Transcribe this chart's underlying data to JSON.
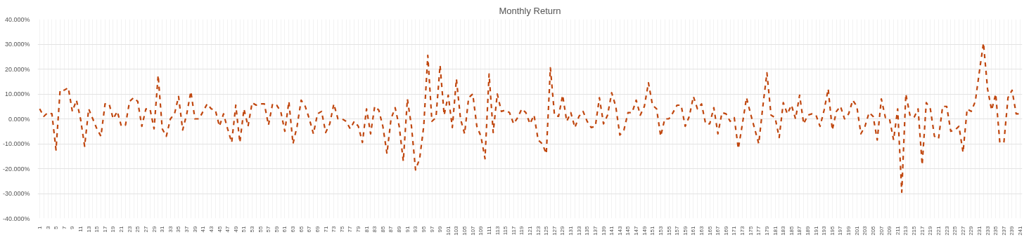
{
  "chart_data": {
    "type": "line",
    "title": "Monthly Return",
    "categories": [
      "1",
      null,
      "3",
      null,
      "5",
      null,
      "7",
      null,
      "9",
      null,
      "11",
      null,
      "13",
      null,
      "15",
      null,
      "17",
      null,
      "19",
      null,
      "21",
      null,
      "23",
      null,
      "25",
      null,
      "27",
      null,
      "29",
      null,
      "31",
      null,
      "33",
      null,
      "35",
      null,
      "37",
      null,
      "39",
      null,
      "41",
      null,
      "43",
      null,
      "45",
      null,
      "47",
      null,
      "49",
      null,
      "51",
      null,
      "53",
      null,
      "55",
      null,
      "57",
      null,
      "59",
      null,
      "61",
      null,
      "63",
      null,
      "65",
      null,
      "67",
      null,
      "69",
      null,
      "71",
      null,
      "73",
      null,
      "75",
      null,
      "77",
      null,
      "79",
      null,
      "81",
      null,
      "83",
      null,
      "85",
      null,
      "87",
      null,
      "89",
      null,
      "91",
      null,
      "93",
      null,
      "95",
      null,
      "97",
      null,
      "99",
      null,
      "101",
      null,
      "103",
      null,
      "105",
      null,
      "107",
      null,
      "109",
      null,
      "111",
      null,
      "113",
      null,
      "115",
      null,
      "117",
      null,
      "119",
      null,
      "121",
      null,
      "123",
      null,
      "125",
      null,
      "127",
      null,
      "129",
      null,
      "131",
      null,
      "133",
      null,
      "135",
      null,
      "137",
      null,
      "139",
      null,
      "141",
      null,
      "143",
      null,
      "145",
      null,
      "147",
      null,
      "149",
      null,
      "151",
      null,
      "153",
      null,
      "155",
      null,
      "157",
      null,
      "159",
      null,
      "161",
      null,
      "163",
      null,
      "165",
      null,
      "167",
      null,
      "169",
      null,
      "171",
      null,
      "173",
      null,
      "175",
      null,
      "177",
      null,
      "179",
      null,
      "181",
      null,
      "183",
      null,
      "185",
      null,
      "187",
      null,
      "189",
      null,
      "191",
      null,
      "193",
      null,
      "195",
      null,
      "197",
      null,
      "199",
      null,
      "201",
      null,
      "203",
      null,
      "205",
      null,
      "207",
      null,
      "209",
      null,
      "211",
      null,
      "213",
      null,
      "215",
      null,
      "217",
      null,
      "219",
      null,
      "221",
      null,
      "223",
      null,
      "225",
      null,
      "227",
      null,
      "229",
      null,
      "231",
      null,
      "233",
      null,
      "235",
      null,
      "237",
      null,
      "239",
      null,
      "241"
    ],
    "series": [
      {
        "color": "#c0470f",
        "values": [
          4,
          1,
          2.5,
          2,
          -12.5,
          11.5,
          11.5,
          12.5,
          3,
          7.5,
          0,
          -11,
          4,
          0,
          -4,
          -7,
          6,
          6,
          0,
          3,
          -3,
          -2.5,
          7,
          8.5,
          7,
          -3,
          4,
          4,
          -4,
          17.5,
          -4,
          -7,
          0,
          2,
          9,
          -4.5,
          2,
          11,
          0,
          0,
          3,
          6,
          4,
          3.5,
          -3,
          2,
          -4,
          -9.5,
          5.5,
          -9.5,
          4,
          -3,
          6.5,
          5.5,
          6,
          6,
          -2.5,
          6,
          5.5,
          3,
          -5,
          7,
          -10,
          -3,
          7.5,
          5,
          0,
          -6,
          2,
          3,
          -5.5,
          -2,
          6,
          0,
          0,
          -1,
          -4,
          -1,
          -3,
          -9.5,
          4,
          -6,
          5,
          3.5,
          -3,
          -14,
          0,
          4.5,
          -3,
          -17,
          8,
          -3,
          -20.5,
          -16,
          -3,
          25.5,
          -1,
          0.5,
          21.5,
          1.5,
          9.5,
          -3.5,
          16,
          0,
          -6,
          8.5,
          10,
          -3,
          -7,
          -16,
          18,
          -5.5,
          10,
          3,
          3.5,
          2.5,
          -2,
          0.5,
          4,
          2.5,
          -2,
          1.5,
          -8.5,
          -10,
          -14,
          20.5,
          1.5,
          1,
          9.5,
          -1,
          2.5,
          -3.5,
          1,
          3,
          -1,
          -3.5,
          -3,
          8.5,
          -2,
          1.5,
          10.5,
          5,
          -6.5,
          -4.5,
          2.5,
          2.5,
          7.5,
          1.5,
          5,
          14.5,
          5.5,
          4,
          -7,
          0,
          0,
          2.5,
          5.5,
          5.5,
          -3,
          1,
          9,
          4,
          6,
          -2,
          -2,
          4.5,
          -6,
          2.5,
          2,
          -1,
          0.5,
          -12,
          -2,
          8.5,
          2,
          -4,
          -10,
          5,
          18.5,
          1.5,
          0.5,
          -7.5,
          6.5,
          2,
          5.5,
          0,
          9.5,
          -2,
          1.5,
          2,
          1.5,
          -3,
          3.5,
          12,
          -4.5,
          3,
          5,
          0,
          2,
          7.5,
          5,
          -6,
          -3,
          2.5,
          1,
          -8.5,
          8,
          0.5,
          0,
          -8.5,
          4,
          -29.5,
          10,
          1.5,
          0.5,
          4,
          -18.5,
          6.5,
          4,
          -7,
          -8,
          5,
          5,
          -5,
          -4.5,
          -3,
          -13.5,
          4,
          3,
          7,
          19,
          30.5,
          12,
          3.5,
          10,
          -9.5,
          -9.5,
          8.5,
          11.5,
          2,
          2
        ]
      }
    ],
    "ylim": [
      -40,
      40
    ],
    "yticks": [
      {
        "value": -40,
        "label": "-40.000%"
      },
      {
        "value": -30,
        "label": "-30.000%"
      },
      {
        "value": -20,
        "label": "-20.000%"
      },
      {
        "value": -10,
        "label": "-10.000%"
      },
      {
        "value": 0,
        "label": "0.000%"
      },
      {
        "value": 10,
        "label": "10.000%"
      },
      {
        "value": 20,
        "label": "20.000%"
      },
      {
        "value": 30,
        "label": "30.000%"
      },
      {
        "value": 40,
        "label": "40.000%"
      }
    ],
    "grid": true,
    "marker": "none",
    "line_style": "dashed"
  }
}
